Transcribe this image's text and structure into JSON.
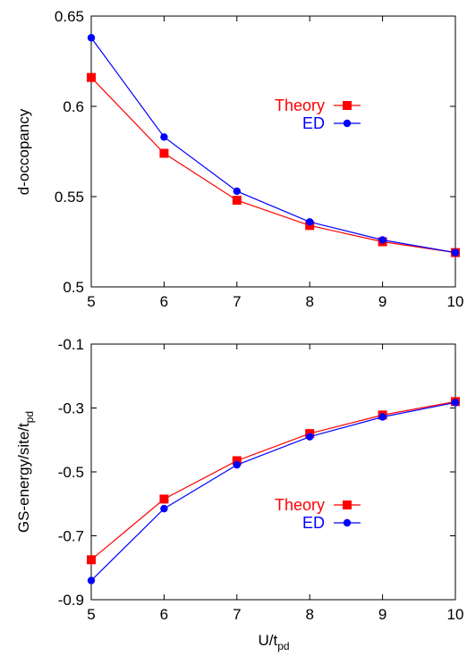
{
  "chart_data": [
    {
      "type": "line",
      "ylabel": "d-occopancy",
      "xlabel": "",
      "x": [
        5,
        6,
        7,
        8,
        9,
        10
      ],
      "xlim": [
        5,
        10
      ],
      "ylim": [
        0.5,
        0.65
      ],
      "x_ticks": [
        "5",
        "6",
        "7",
        "8",
        "9",
        "10"
      ],
      "y_ticks": [
        "0.5",
        "0.55",
        "0.6",
        "0.65"
      ],
      "y_tick_values": [
        0.5,
        0.55,
        0.6,
        0.65
      ],
      "legend_position": "center-right",
      "grid": false,
      "series": [
        {
          "name": "Theory",
          "color": "#ff0000",
          "marker": "square",
          "values": [
            0.616,
            0.574,
            0.548,
            0.534,
            0.525,
            0.519
          ]
        },
        {
          "name": "ED",
          "color": "#0000ff",
          "marker": "circle",
          "values": [
            0.638,
            0.583,
            0.553,
            0.536,
            0.526,
            0.519
          ]
        }
      ]
    },
    {
      "type": "line",
      "ylabel": "GS-energy/site/t",
      "ylabel_sub": "pd",
      "xlabel": "U/t",
      "xlabel_sub": "pd",
      "x": [
        5,
        6,
        7,
        8,
        9,
        10
      ],
      "xlim": [
        5,
        10
      ],
      "ylim": [
        -0.9,
        -0.1
      ],
      "x_ticks": [
        "5",
        "6",
        "7",
        "8",
        "9",
        "10"
      ],
      "y_ticks": [
        "-0.9",
        "-0.7",
        "-0.5",
        "-0.3",
        "-0.1"
      ],
      "y_tick_values": [
        -0.9,
        -0.7,
        -0.5,
        -0.3,
        -0.1
      ],
      "legend_position": "center-right",
      "grid": false,
      "series": [
        {
          "name": "Theory",
          "color": "#ff0000",
          "marker": "square",
          "values": [
            -0.775,
            -0.585,
            -0.465,
            -0.38,
            -0.322,
            -0.28
          ]
        },
        {
          "name": "ED",
          "color": "#0000ff",
          "marker": "circle",
          "values": [
            -0.84,
            -0.615,
            -0.478,
            -0.39,
            -0.328,
            -0.283
          ]
        }
      ]
    }
  ]
}
